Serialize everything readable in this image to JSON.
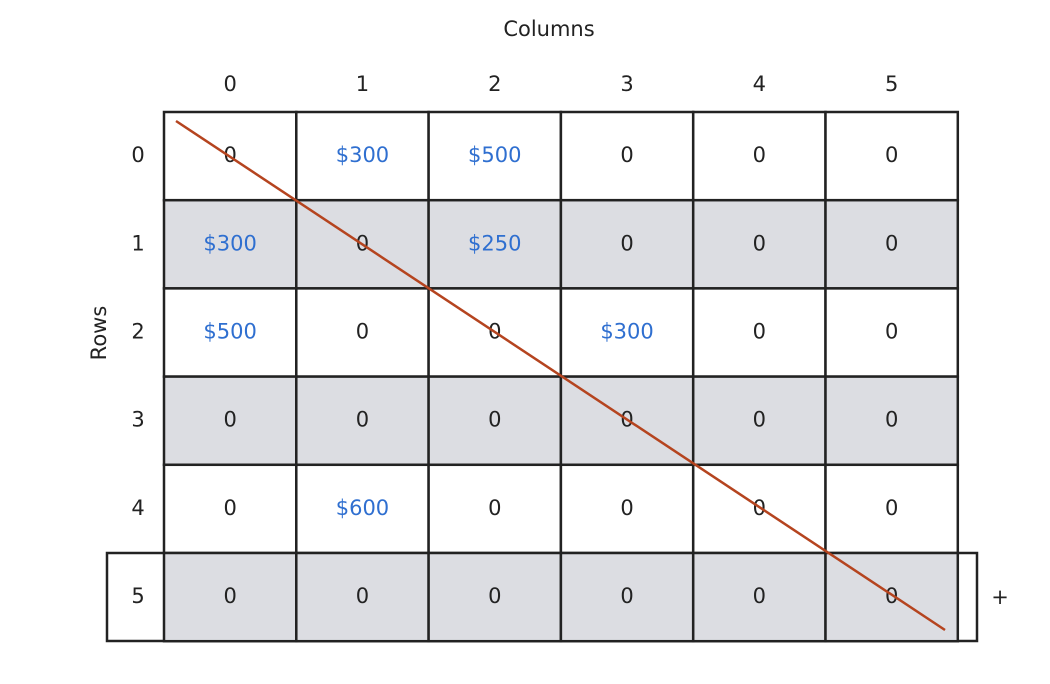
{
  "columns_label": "Columns",
  "rows_label": "Rows",
  "column_headers": [
    "0",
    "1",
    "2",
    "3",
    "4",
    "5"
  ],
  "row_headers": [
    "0",
    "1",
    "2",
    "3",
    "4",
    "5"
  ],
  "cells": [
    [
      "0",
      "$300",
      "$500",
      "0",
      "0",
      "0"
    ],
    [
      "$300",
      "0",
      "$250",
      "0",
      "0",
      "0"
    ],
    [
      "$500",
      "0",
      "0",
      "$300",
      "0",
      "0"
    ],
    [
      "0",
      "0",
      "0",
      "0",
      "0",
      "0"
    ],
    [
      "0",
      "$600",
      "0",
      "0",
      "0",
      "0"
    ],
    [
      "0",
      "0",
      "0",
      "0",
      "0",
      "0"
    ]
  ],
  "add_button": "+"
}
